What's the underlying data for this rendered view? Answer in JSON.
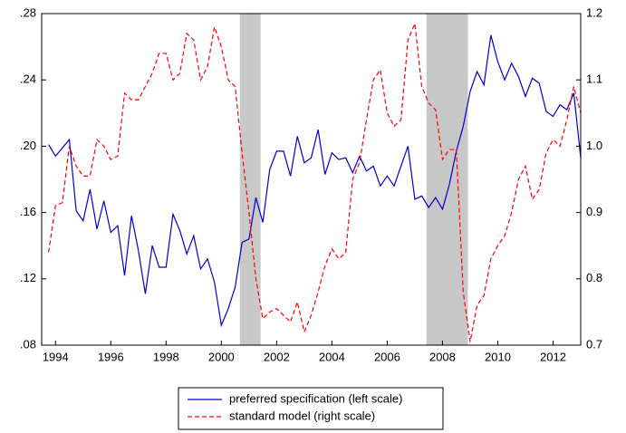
{
  "chart_data": {
    "type": "line",
    "x": [
      1993.75,
      1994,
      1994.25,
      1994.5,
      1994.75,
      1995,
      1995.25,
      1995.5,
      1995.75,
      1996,
      1996.25,
      1996.5,
      1996.75,
      1997,
      1997.25,
      1997.5,
      1997.75,
      1998,
      1998.25,
      1998.5,
      1998.75,
      1999,
      1999.25,
      1999.5,
      1999.75,
      2000,
      2000.25,
      2000.5,
      2000.75,
      2001,
      2001.25,
      2001.5,
      2001.75,
      2002,
      2002.25,
      2002.5,
      2002.75,
      2003,
      2003.25,
      2003.5,
      2003.75,
      2004,
      2004.25,
      2004.5,
      2004.75,
      2005,
      2005.25,
      2005.5,
      2005.75,
      2006,
      2006.25,
      2006.5,
      2006.75,
      2007,
      2007.25,
      2007.5,
      2007.75,
      2008,
      2008.25,
      2008.5,
      2008.75,
      2009,
      2009.25,
      2009.5,
      2009.75,
      2010,
      2010.25,
      2010.5,
      2010.75,
      2011,
      2011.25,
      2011.5,
      2011.75,
      2012,
      2012.25,
      2012.5,
      2012.75,
      2013
    ],
    "series": [
      {
        "name": "preferred specification (left scale)",
        "color": "#0000cc",
        "style": "solid",
        "axis": "y",
        "values": [
          0.201,
          0.194,
          0.199,
          0.204,
          0.161,
          0.155,
          0.174,
          0.15,
          0.167,
          0.148,
          0.152,
          0.122,
          0.158,
          0.137,
          0.111,
          0.14,
          0.127,
          0.127,
          0.159,
          0.149,
          0.135,
          0.146,
          0.126,
          0.132,
          0.118,
          0.092,
          0.102,
          0.115,
          0.142,
          0.144,
          0.169,
          0.154,
          0.186,
          0.197,
          0.197,
          0.182,
          0.206,
          0.19,
          0.193,
          0.21,
          0.183,
          0.196,
          0.192,
          0.193,
          0.184,
          0.194,
          0.185,
          0.188,
          0.176,
          0.182,
          0.176,
          0.188,
          0.2,
          0.168,
          0.17,
          0.163,
          0.169,
          0.162,
          0.177,
          0.197,
          0.212,
          0.233,
          0.245,
          0.237,
          0.267,
          0.251,
          0.24,
          0.25,
          0.242,
          0.23,
          0.241,
          0.238,
          0.221,
          0.218,
          0.225,
          0.222,
          0.232,
          0.193
        ]
      },
      {
        "name": "standard model (right scale)",
        "color": "#ff0000",
        "style": "dashed",
        "axis": "y2",
        "values": [
          0.84,
          0.91,
          0.915,
          1.0,
          0.97,
          0.955,
          0.955,
          1.01,
          1.0,
          0.98,
          0.985,
          1.08,
          1.07,
          1.07,
          1.09,
          1.11,
          1.14,
          1.14,
          1.1,
          1.11,
          1.17,
          1.16,
          1.1,
          1.12,
          1.18,
          1.15,
          1.1,
          1.09,
          0.99,
          0.9,
          0.8,
          0.74,
          0.75,
          0.755,
          0.745,
          0.735,
          0.765,
          0.72,
          0.745,
          0.78,
          0.82,
          0.845,
          0.83,
          0.84,
          0.95,
          0.975,
          1.04,
          1.1,
          1.115,
          1.05,
          1.03,
          1.04,
          1.16,
          1.185,
          1.09,
          1.065,
          1.055,
          0.98,
          0.995,
          0.995,
          0.78,
          0.705,
          0.76,
          0.775,
          0.83,
          0.85,
          0.865,
          0.9,
          0.95,
          0.97,
          0.92,
          0.935,
          0.99,
          1.01,
          1.0,
          1.04,
          1.09,
          1.05
        ]
      }
    ],
    "shaded_regions": [
      [
        2000.67,
        2001.42
      ],
      [
        2007.42,
        2008.92
      ]
    ],
    "shade_color": "#c8c8c8",
    "xlim": [
      1993.5,
      2013.0
    ],
    "xticks": [
      1994,
      1996,
      1998,
      2000,
      2002,
      2004,
      2006,
      2008,
      2010,
      2012
    ],
    "ylim": [
      0.08,
      0.28
    ],
    "yticks": [
      {
        "value": 0.08,
        "label": ".08"
      },
      {
        "value": 0.12,
        "label": ".12"
      },
      {
        "value": 0.16,
        "label": ".16"
      },
      {
        "value": 0.2,
        "label": ".20"
      },
      {
        "value": 0.24,
        "label": ".24"
      },
      {
        "value": 0.28,
        "label": ".28"
      }
    ],
    "y2lim": [
      0.7,
      1.2
    ],
    "y2ticks": [
      0.7,
      0.8,
      0.9,
      {
        "value": 1.0,
        "label": "1.0"
      },
      1.1,
      1.2
    ],
    "legend": "bottom"
  }
}
